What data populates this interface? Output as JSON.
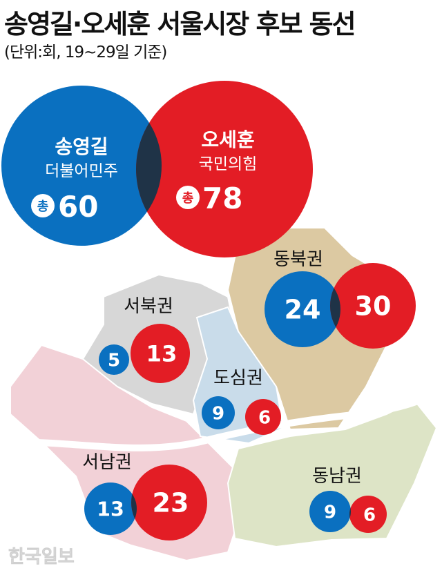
{
  "header": {
    "title": "송영길·오세훈 서울시장 후보 동선",
    "subtitle": "(단위:회, 19~29일 기준)"
  },
  "colors": {
    "song": "#0a70c0",
    "oh": "#e31d25",
    "overlap": "#1f3347"
  },
  "candidates": [
    {
      "name": "송영길",
      "party": "더불어민주",
      "total_prefix": "총",
      "total": "60"
    },
    {
      "name": "오세훈",
      "party": "국민의힘",
      "total_prefix": "총",
      "total": "78"
    }
  ],
  "regions": [
    {
      "name": "동북권",
      "song": "24",
      "oh": "30",
      "color": "#dcc9a2"
    },
    {
      "name": "서북권",
      "song": "5",
      "oh": "13",
      "color": "#d7d7d7"
    },
    {
      "name": "도심권",
      "song": "9",
      "oh": "6",
      "color": "#c9dcea"
    },
    {
      "name": "서남권",
      "song": "13",
      "oh": "23",
      "color": "#f2d1d7"
    },
    {
      "name": "동남권",
      "song": "9",
      "oh": "6",
      "color": "#dde4c6"
    }
  ],
  "watermark": "한국일보"
}
